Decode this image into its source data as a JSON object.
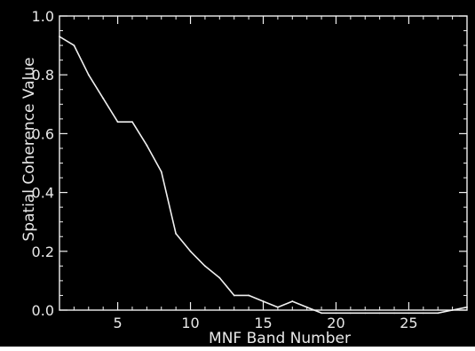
{
  "chart_data": {
    "type": "line",
    "title": "",
    "xlabel": "MNF Band Number",
    "ylabel": "Spatial Coherence Value",
    "xlim": [
      1,
      29
    ],
    "ylim": [
      0.0,
      1.0
    ],
    "x_ticks": [
      5,
      10,
      15,
      20,
      25
    ],
    "y_ticks": [
      0.0,
      0.2,
      0.4,
      0.6,
      0.8,
      1.0
    ],
    "x_tick_labels": [
      "5",
      "10",
      "15",
      "20",
      "25"
    ],
    "y_tick_labels": [
      "0.0",
      "0.2",
      "0.4",
      "0.6",
      "0.8",
      "1.0"
    ],
    "grid": false,
    "legend": "none",
    "colors": {
      "background": "#000000",
      "line": "#f0f0f0",
      "frame": "#f0f0f0"
    },
    "series": [
      {
        "x": [
          1,
          2,
          3,
          4,
          5,
          6,
          7,
          8,
          9,
          10,
          11,
          12,
          13,
          14,
          15,
          16,
          17,
          18,
          19,
          20,
          21,
          22,
          23,
          24,
          25,
          26,
          27,
          28,
          29
        ],
        "values": [
          0.93,
          0.9,
          0.8,
          0.72,
          0.64,
          0.64,
          0.56,
          0.47,
          0.26,
          0.2,
          0.15,
          0.11,
          0.05,
          0.05,
          0.03,
          0.01,
          0.03,
          0.01,
          -0.01,
          -0.01,
          -0.01,
          -0.01,
          -0.01,
          -0.01,
          -0.01,
          -0.01,
          -0.01,
          0.0,
          0.01
        ]
      }
    ]
  }
}
